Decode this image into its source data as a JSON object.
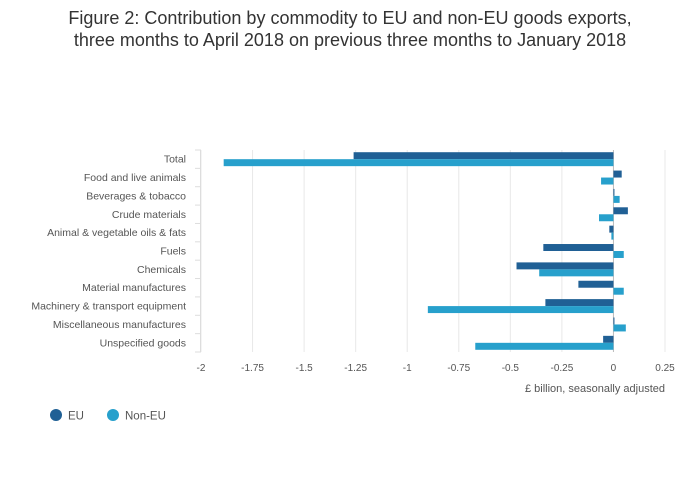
{
  "chart_data": {
    "type": "bar",
    "orientation": "horizontal",
    "title_lines": [
      "Figure 2: Contribution by commodity to EU and non-EU goods exports,",
      "three months to April 2018 on previous three months to January 2018"
    ],
    "xlabel": "£ billion, seasonally adjusted",
    "xlim": [
      -2,
      0.25
    ],
    "xticks": [
      -2,
      -1.75,
      -1.5,
      -1.25,
      -1,
      -0.75,
      -0.5,
      -0.25,
      0,
      0.25
    ],
    "xtick_labels": [
      "-2",
      "-1.75",
      "-1.5",
      "-1.25",
      "-1",
      "-0.75",
      "-0.5",
      "-0.25",
      "0",
      "0.25"
    ],
    "grid": "vertical",
    "legend_position": "bottom-left",
    "categories": [
      "Total",
      "Food and live animals",
      "Beverages & tobacco",
      "Crude materials",
      "Animal & vegetable oils & fats",
      "Fuels",
      "Chemicals",
      "Material manufactures",
      "Machinery & transport equipment",
      "Miscellaneous manufactures",
      "Unspecified goods"
    ],
    "series": [
      {
        "name": "EU",
        "color": "#206095",
        "values": [
          -1.26,
          0.04,
          0.0,
          0.07,
          -0.02,
          -0.34,
          -0.47,
          -0.17,
          -0.33,
          0.0,
          -0.05
        ]
      },
      {
        "name": "Non-EU",
        "color": "#27a0cc",
        "values": [
          -1.89,
          -0.06,
          0.03,
          -0.07,
          -0.01,
          0.05,
          -0.36,
          0.05,
          -0.9,
          0.06,
          -0.67
        ]
      }
    ]
  }
}
